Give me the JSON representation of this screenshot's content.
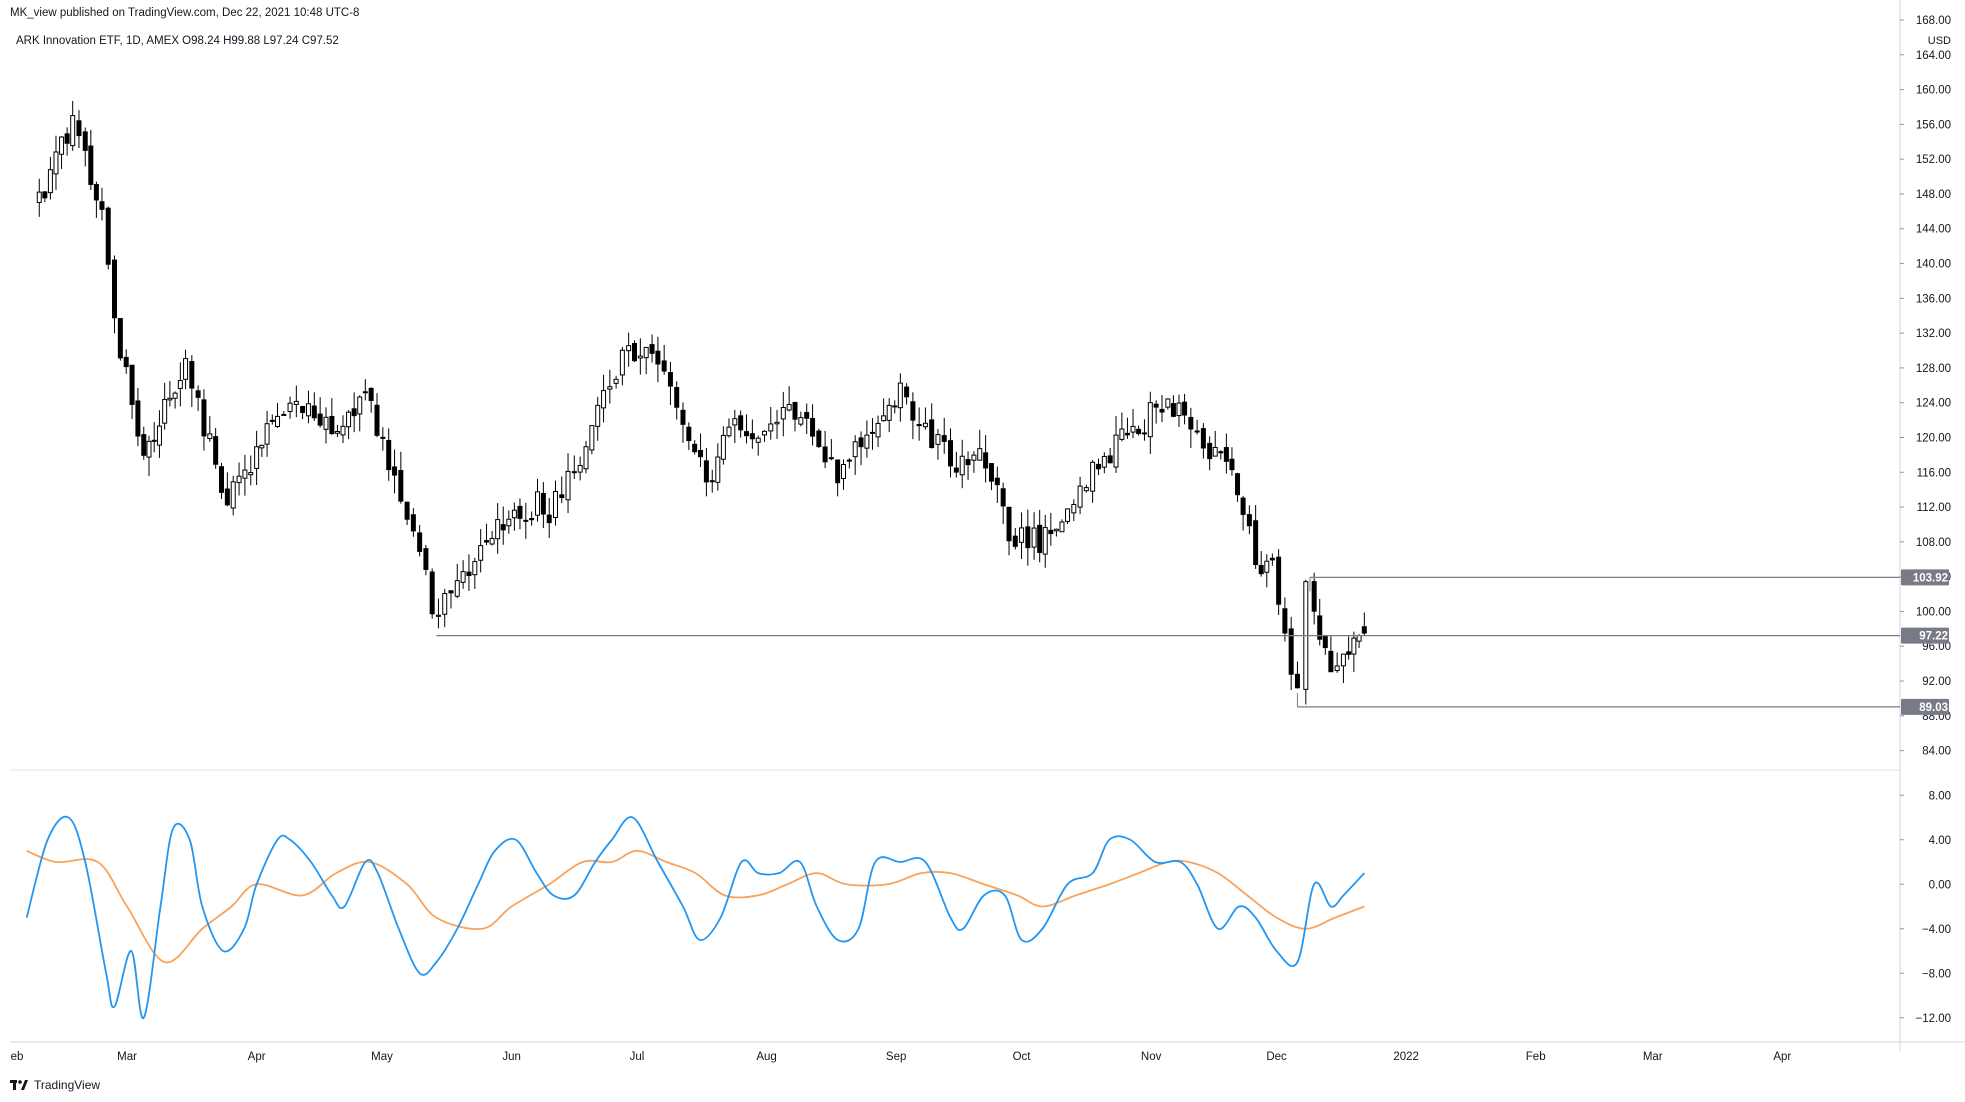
{
  "header": {
    "publish_line": "MK_view published on TradingView.com, Dec 22, 2021 10:48 UTC-8",
    "symbol_line": "ARK Innovation ETF, 1D, AMEX  O98.24  H99.88  L97.24  C97.52"
  },
  "footer": {
    "brand": "TradingView"
  },
  "colors": {
    "candle_up": "#ffffff",
    "candle_down": "#000000",
    "candle_outline": "#000000",
    "level_line": "#787b86",
    "label_bg": "#787b86",
    "oscillator_fast": "#2196f3",
    "oscillator_signal": "#f7a35c",
    "grid": "#f0f3fa",
    "axis_text": "#131722"
  },
  "chart_data": [
    {
      "type": "candlestick",
      "title": "ARK Innovation ETF, 1D, AMEX",
      "ohlc_last": {
        "open": 98.24,
        "high": 99.88,
        "low": 97.24,
        "close": 97.52
      },
      "y_unit": "USD",
      "ylim": [
        82,
        168
      ],
      "y_ticks": [
        84,
        88,
        92,
        96,
        100,
        104,
        108,
        112,
        116,
        120,
        124,
        128,
        132,
        136,
        140,
        144,
        148,
        152,
        156,
        160,
        164,
        168
      ],
      "y_tick_labels": [
        "84.00",
        "88.00",
        "92.00",
        "96.00",
        "100.00",
        "104.00",
        "108.00",
        "112.00",
        "116.00",
        "120.00",
        "124.00",
        "128.00",
        "132.00",
        "136.00",
        "140.00",
        "144.00",
        "148.00",
        "152.00",
        "156.00",
        "160.00",
        "164.00",
        "168.00"
      ],
      "x_ticks": [
        "Feb",
        "Mar",
        "Apr",
        "May",
        "Jun",
        "Jul",
        "Aug",
        "Sep",
        "Oct",
        "Nov",
        "Dec",
        "2022",
        "Feb",
        "Mar",
        "Apr"
      ],
      "x_tick_labels_shown": [
        "eb",
        "Mar",
        "Apr",
        "May",
        "Jun",
        "Jul",
        "Aug",
        "Sep",
        "Oct",
        "Nov",
        "Dec",
        "2022",
        "Feb",
        "Mar",
        "Apr"
      ],
      "horizontal_levels": [
        {
          "value": 103.92,
          "label": "103.92",
          "from": "Dec"
        },
        {
          "value": 97.22,
          "label": "97.22",
          "from": "May"
        },
        {
          "value": 89.03,
          "label": "89.03",
          "from": "Dec"
        }
      ],
      "anchors": [
        {
          "date": "2021-02-08",
          "price": 147
        },
        {
          "date": "2021-02-16",
          "price": 157
        },
        {
          "date": "2021-02-19",
          "price": 152
        },
        {
          "date": "2021-02-23",
          "price": 146
        },
        {
          "date": "2021-02-26",
          "price": 133
        },
        {
          "date": "2021-03-05",
          "price": 118
        },
        {
          "date": "2021-03-10",
          "price": 124
        },
        {
          "date": "2021-03-15",
          "price": 129
        },
        {
          "date": "2021-03-18",
          "price": 124
        },
        {
          "date": "2021-03-25",
          "price": 113
        },
        {
          "date": "2021-04-01",
          "price": 118
        },
        {
          "date": "2021-04-06",
          "price": 123
        },
        {
          "date": "2021-04-12",
          "price": 124
        },
        {
          "date": "2021-04-19",
          "price": 120
        },
        {
          "date": "2021-04-27",
          "price": 126
        },
        {
          "date": "2021-05-04",
          "price": 115
        },
        {
          "date": "2021-05-10",
          "price": 108
        },
        {
          "date": "2021-05-13",
          "price": 99
        },
        {
          "date": "2021-05-19",
          "price": 103
        },
        {
          "date": "2021-05-26",
          "price": 108
        },
        {
          "date": "2021-06-03",
          "price": 112
        },
        {
          "date": "2021-06-10",
          "price": 112
        },
        {
          "date": "2021-06-16",
          "price": 116
        },
        {
          "date": "2021-06-23",
          "price": 124
        },
        {
          "date": "2021-06-29",
          "price": 131
        },
        {
          "date": "2021-07-06",
          "price": 128
        },
        {
          "date": "2021-07-12",
          "price": 121
        },
        {
          "date": "2021-07-19",
          "price": 115
        },
        {
          "date": "2021-07-23",
          "price": 122
        },
        {
          "date": "2021-07-30",
          "price": 119
        },
        {
          "date": "2021-08-05",
          "price": 124
        },
        {
          "date": "2021-08-12",
          "price": 121
        },
        {
          "date": "2021-08-18",
          "price": 115
        },
        {
          "date": "2021-08-25",
          "price": 121
        },
        {
          "date": "2021-09-02",
          "price": 125
        },
        {
          "date": "2021-09-08",
          "price": 121
        },
        {
          "date": "2021-09-14",
          "price": 117
        },
        {
          "date": "2021-09-21",
          "price": 119
        },
        {
          "date": "2021-09-28",
          "price": 109
        },
        {
          "date": "2021-10-04",
          "price": 108
        },
        {
          "date": "2021-10-12",
          "price": 111
        },
        {
          "date": "2021-10-18",
          "price": 116
        },
        {
          "date": "2021-10-25",
          "price": 120
        },
        {
          "date": "2021-10-29",
          "price": 121
        },
        {
          "date": "2021-11-05",
          "price": 124
        },
        {
          "date": "2021-11-09",
          "price": 123
        },
        {
          "date": "2021-11-15",
          "price": 118
        },
        {
          "date": "2021-11-19",
          "price": 118
        },
        {
          "date": "2021-11-23",
          "price": 111
        },
        {
          "date": "2021-11-26",
          "price": 105
        },
        {
          "date": "2021-11-30",
          "price": 106
        },
        {
          "date": "2021-12-03",
          "price": 96
        },
        {
          "date": "2021-12-06",
          "price": 91
        },
        {
          "date": "2021-12-08",
          "price": 103
        },
        {
          "date": "2021-12-10",
          "price": 99
        },
        {
          "date": "2021-12-14",
          "price": 94
        },
        {
          "date": "2021-12-17",
          "price": 95
        },
        {
          "date": "2021-12-22",
          "price": 97.52
        }
      ]
    },
    {
      "type": "line",
      "ylim": [
        -14,
        10
      ],
      "y_ticks": [
        8,
        4,
        0,
        -4,
        -8,
        -12
      ],
      "y_tick_labels": [
        "8.00",
        "4.00",
        "0.00",
        "−4.00",
        "−8.00",
        "−12.00"
      ],
      "series": [
        {
          "color": "#2196f3",
          "points": [
            [
              "2021-02-05",
              -3
            ],
            [
              "2021-02-10",
              4
            ],
            [
              "2021-02-15",
              6
            ],
            [
              "2021-02-19",
              2
            ],
            [
              "2021-02-24",
              -8
            ],
            [
              "2021-02-26",
              -11
            ],
            [
              "2021-03-02",
              -6
            ],
            [
              "2021-03-05",
              -12
            ],
            [
              "2021-03-09",
              -2
            ],
            [
              "2021-03-12",
              5
            ],
            [
              "2021-03-16",
              4
            ],
            [
              "2021-03-19",
              -2
            ],
            [
              "2021-03-24",
              -6
            ],
            [
              "2021-03-29",
              -4
            ],
            [
              "2021-04-01",
              0
            ],
            [
              "2021-04-06",
              4
            ],
            [
              "2021-04-09",
              4
            ],
            [
              "2021-04-14",
              2
            ],
            [
              "2021-04-19",
              -1
            ],
            [
              "2021-04-22",
              -2
            ],
            [
              "2021-04-27",
              2
            ],
            [
              "2021-04-30",
              1
            ],
            [
              "2021-05-05",
              -4
            ],
            [
              "2021-05-10",
              -8
            ],
            [
              "2021-05-14",
              -7
            ],
            [
              "2021-05-19",
              -4
            ],
            [
              "2021-05-24",
              0
            ],
            [
              "2021-05-28",
              3
            ],
            [
              "2021-06-02",
              4
            ],
            [
              "2021-06-07",
              1
            ],
            [
              "2021-06-11",
              -1
            ],
            [
              "2021-06-16",
              -1
            ],
            [
              "2021-06-21",
              2
            ],
            [
              "2021-06-25",
              4
            ],
            [
              "2021-06-30",
              6
            ],
            [
              "2021-07-06",
              2
            ],
            [
              "2021-07-12",
              -2
            ],
            [
              "2021-07-16",
              -5
            ],
            [
              "2021-07-21",
              -3
            ],
            [
              "2021-07-26",
              2
            ],
            [
              "2021-07-30",
              1
            ],
            [
              "2021-08-04",
              1
            ],
            [
              "2021-08-09",
              2
            ],
            [
              "2021-08-13",
              -2
            ],
            [
              "2021-08-18",
              -5
            ],
            [
              "2021-08-23",
              -4
            ],
            [
              "2021-08-27",
              2
            ],
            [
              "2021-09-02",
              2
            ],
            [
              "2021-09-08",
              2
            ],
            [
              "2021-09-14",
              -3
            ],
            [
              "2021-09-17",
              -4
            ],
            [
              "2021-09-22",
              -1
            ],
            [
              "2021-09-27",
              -1
            ],
            [
              "2021-10-01",
              -5
            ],
            [
              "2021-10-06",
              -4
            ],
            [
              "2021-10-12",
              0
            ],
            [
              "2021-10-18",
              1
            ],
            [
              "2021-10-22",
              4
            ],
            [
              "2021-10-27",
              4
            ],
            [
              "2021-11-02",
              2
            ],
            [
              "2021-11-08",
              2
            ],
            [
              "2021-11-12",
              0
            ],
            [
              "2021-11-17",
              -4
            ],
            [
              "2021-11-22",
              -2
            ],
            [
              "2021-11-26",
              -3
            ],
            [
              "2021-12-01",
              -6
            ],
            [
              "2021-12-06",
              -7
            ],
            [
              "2021-12-10",
              0
            ],
            [
              "2021-12-14",
              -2
            ],
            [
              "2021-12-17",
              -1
            ],
            [
              "2021-12-22",
              1
            ]
          ]
        },
        {
          "color": "#f7a35c",
          "points": [
            [
              "2021-02-05",
              3
            ],
            [
              "2021-02-12",
              2
            ],
            [
              "2021-02-22",
              2
            ],
            [
              "2021-03-01",
              -2
            ],
            [
              "2021-03-10",
              -7
            ],
            [
              "2021-03-19",
              -4
            ],
            [
              "2021-03-26",
              -2
            ],
            [
              "2021-04-01",
              0
            ],
            [
              "2021-04-12",
              -1
            ],
            [
              "2021-04-20",
              1
            ],
            [
              "2021-04-28",
              2
            ],
            [
              "2021-05-07",
              0
            ],
            [
              "2021-05-14",
              -3
            ],
            [
              "2021-05-25",
              -4
            ],
            [
              "2021-06-01",
              -2
            ],
            [
              "2021-06-10",
              0
            ],
            [
              "2021-06-18",
              2
            ],
            [
              "2021-06-25",
              2
            ],
            [
              "2021-07-01",
              3
            ],
            [
              "2021-07-08",
              2
            ],
            [
              "2021-07-15",
              1
            ],
            [
              "2021-07-22",
              -1
            ],
            [
              "2021-07-30",
              -1
            ],
            [
              "2021-08-06",
              0
            ],
            [
              "2021-08-13",
              1
            ],
            [
              "2021-08-20",
              0
            ],
            [
              "2021-08-30",
              0
            ],
            [
              "2021-09-07",
              1
            ],
            [
              "2021-09-14",
              1
            ],
            [
              "2021-09-22",
              0
            ],
            [
              "2021-09-30",
              -1
            ],
            [
              "2021-10-06",
              -2
            ],
            [
              "2021-10-14",
              -1
            ],
            [
              "2021-10-22",
              0
            ],
            [
              "2021-10-29",
              1
            ],
            [
              "2021-11-05",
              2
            ],
            [
              "2021-11-10",
              2
            ],
            [
              "2021-11-17",
              1
            ],
            [
              "2021-11-24",
              -1
            ],
            [
              "2021-12-01",
              -3
            ],
            [
              "2021-12-08",
              -4
            ],
            [
              "2021-12-15",
              -3
            ],
            [
              "2021-12-22",
              -2
            ]
          ]
        }
      ]
    }
  ]
}
